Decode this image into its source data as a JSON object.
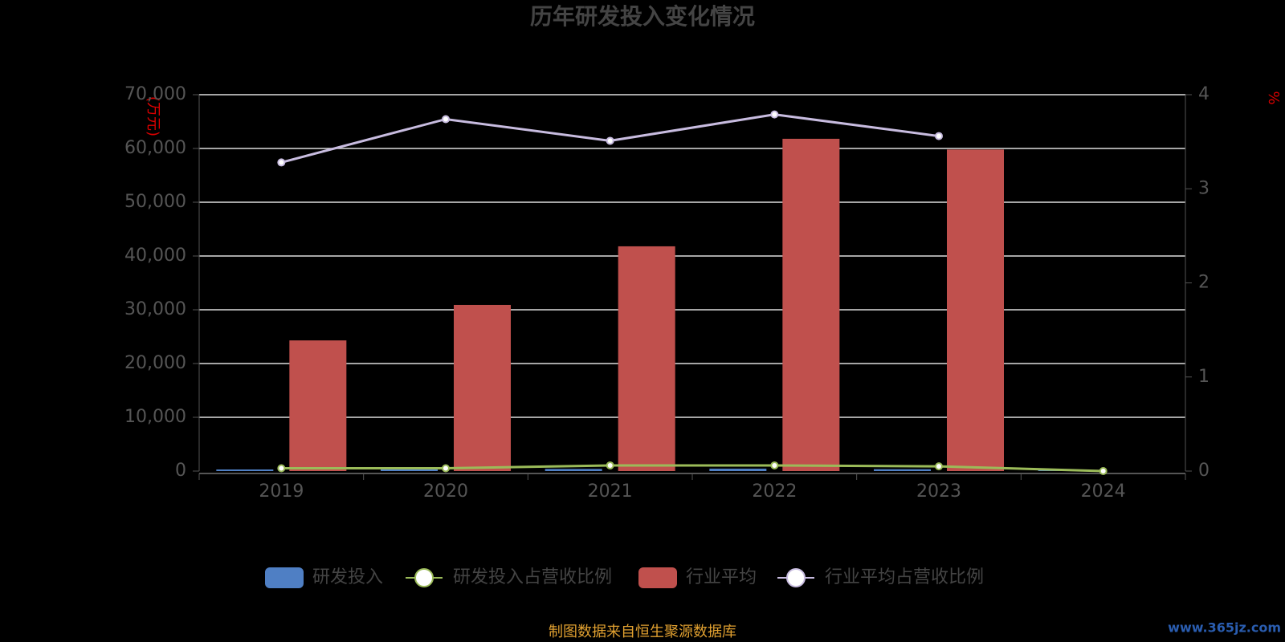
{
  "chart_data": {
    "type": "bar-line",
    "title": "历年研发投入变化情况",
    "y_label": "(万元)",
    "y2_label": "%",
    "categories": [
      "2019",
      "2020",
      "2021",
      "2022",
      "2023",
      "2024"
    ],
    "series": [
      {
        "name": "研发投入",
        "type": "bar",
        "color": "#4f7fc4",
        "values": [
          300,
          350,
          400,
          450,
          350,
          150
        ]
      },
      {
        "name": "研发投入占营收比例",
        "type": "line",
        "axis": "y2",
        "color": "#9bbb59",
        "values": [
          0.03,
          0.03,
          0.06,
          0.06,
          0.05,
          0.0
        ]
      },
      {
        "name": "行业平均",
        "type": "bar",
        "color": "#c0504d",
        "values": [
          24300,
          30900,
          41800,
          61800,
          59800,
          null
        ]
      },
      {
        "name": "行业平均占营收比例",
        "type": "line",
        "axis": "y2",
        "color": "#c8bce0",
        "values": [
          3.28,
          3.74,
          3.51,
          3.79,
          3.56,
          null
        ]
      }
    ],
    "ylim": [
      0,
      70000
    ],
    "yticks": [
      0,
      {
        "value": 10000,
        "label": "10,000"
      },
      {
        "value": 20000,
        "label": "20,000"
      },
      {
        "value": 30000,
        "label": "30,000"
      },
      {
        "value": 40000,
        "label": "40,000"
      },
      {
        "value": 50000,
        "label": "50,000"
      },
      {
        "value": 60000,
        "label": "60,000"
      },
      {
        "value": 70000,
        "label": "70,000"
      }
    ],
    "y2lim": [
      0,
      4
    ],
    "y2ticks": [
      0,
      1,
      2,
      3,
      4
    ],
    "grid": true,
    "legend": "bottom",
    "source": "制图数据来自恒生聚源数据库",
    "watermark": "www.365jz.com"
  }
}
